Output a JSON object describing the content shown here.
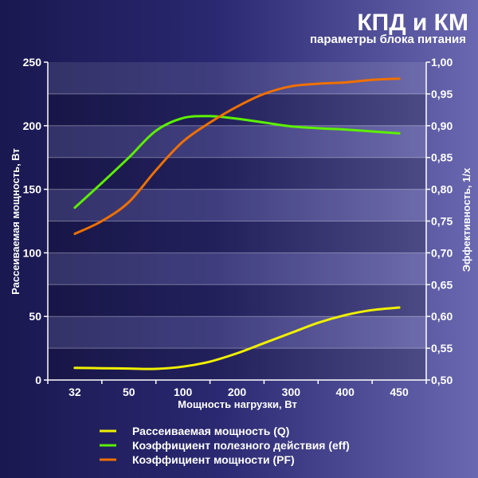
{
  "header": {
    "title": "КПД и КМ",
    "subtitle": "параметры блока питания"
  },
  "chart_data": {
    "type": "line",
    "categories": [
      "32",
      "50",
      "100",
      "200",
      "300",
      "400",
      "450"
    ],
    "xlabel": "Мощность нагрузки, Вт",
    "ylabel_left": "Рассеиваемая мощность, Вт",
    "ylabel_right": "Эффективность, 1/x",
    "ylim_left": [
      0,
      250
    ],
    "yticks_left": [
      "0",
      "50",
      "100",
      "150",
      "200",
      "250"
    ],
    "ylim_right": [
      0.5,
      1.0
    ],
    "yticks_right": [
      "0,50",
      "0,55",
      "0,60",
      "0,65",
      "0,70",
      "0,75",
      "0,80",
      "0,85",
      "0,90",
      "0,95",
      "1,00"
    ],
    "grid": "horizontal bands",
    "legend_position": "bottom",
    "series": [
      {
        "name": "Рассеиваемая мощность (Q)",
        "axis": "left",
        "color": "#f0f000",
        "x": [
          0,
          0.5,
          1,
          1.5,
          2,
          2.5,
          3,
          3.5,
          4,
          4.5,
          5,
          5.5,
          6
        ],
        "values": [
          9.5,
          9.3,
          9.0,
          8.8,
          10.5,
          14.5,
          21,
          29,
          37,
          45,
          51,
          55,
          57
        ]
      },
      {
        "name": "Коэффициент полезного действия (eff)",
        "axis": "right",
        "color": "#5cf000",
        "x": [
          0,
          0.5,
          1,
          1.5,
          2,
          2.5,
          3,
          3.5,
          4,
          4.5,
          5,
          5.5,
          6
        ],
        "values": [
          0.771,
          0.81,
          0.85,
          0.892,
          0.912,
          0.915,
          0.911,
          0.905,
          0.899,
          0.896,
          0.894,
          0.891,
          0.888
        ]
      },
      {
        "name": "Коэффициент мощности (PF)",
        "axis": "right",
        "color": "#f07000",
        "x": [
          0,
          0.5,
          1,
          1.5,
          2,
          2.5,
          3,
          3.5,
          4,
          4.5,
          5,
          5.5,
          6
        ],
        "values": [
          0.73,
          0.75,
          0.78,
          0.83,
          0.875,
          0.905,
          0.93,
          0.95,
          0.962,
          0.966,
          0.968,
          0.972,
          0.974
        ]
      }
    ]
  }
}
